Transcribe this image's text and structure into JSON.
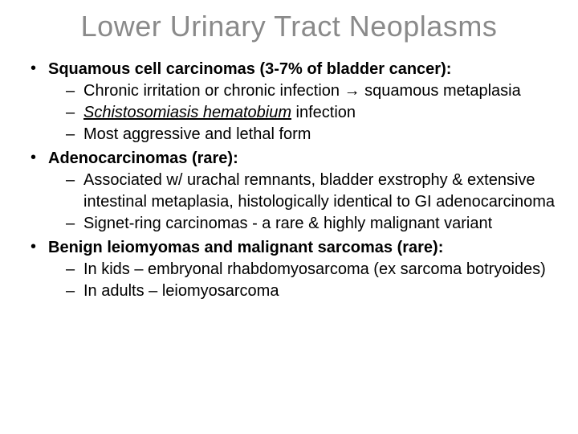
{
  "title": "Lower Urinary Tract Neoplasms",
  "colors": {
    "title": "#8a8a8a",
    "text": "#000000",
    "background": "#ffffff"
  },
  "typography": {
    "title_fontsize": 36,
    "title_weight": 400,
    "header_fontsize": 20,
    "header_weight": "bold",
    "body_fontsize": 20,
    "font_family": "Arial"
  },
  "sections": [
    {
      "header": "Squamous cell carcinomas (3-7% of bladder cancer):",
      "items": [
        {
          "pre": "Chronic irritation or chronic infection ",
          "arrow": "→",
          "post": " squamous metaplasia"
        },
        {
          "italic_underline": "Schistosomiasis hematobium",
          "tail": " infection"
        },
        {
          "text": "Most aggressive and lethal form"
        }
      ]
    },
    {
      "header": "Adenocarcinomas (rare):",
      "items": [
        {
          "text": "Associated w/ urachal remnants, bladder exstrophy & extensive intestinal metaplasia, histologically identical to GI adenocarcinoma"
        },
        {
          "text": "Signet-ring carcinomas - a rare & highly malignant variant"
        }
      ]
    },
    {
      "header": "Benign leiomyomas and malignant sarcomas (rare):",
      "items": [
        {
          "text": "In kids – embryonal rhabdomyosarcoma (ex sarcoma botryoides)"
        },
        {
          "text": "In adults – leiomyosarcoma"
        }
      ]
    }
  ]
}
